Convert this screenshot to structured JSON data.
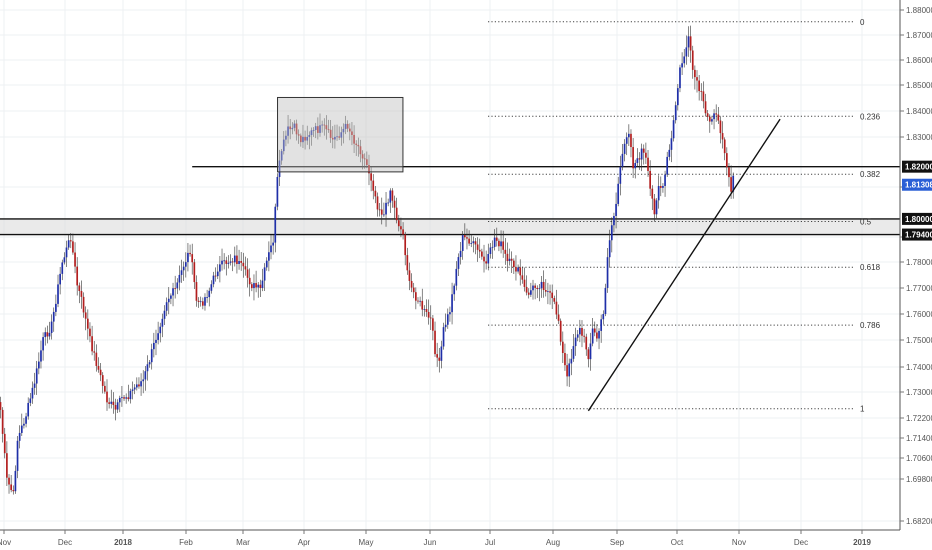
{
  "chart_data": {
    "type": "candlestick",
    "ylim": [
      1.682,
      1.886
    ],
    "y_ticks": [
      "1.88000",
      "1.87000",
      "1.86000",
      "1.85000",
      "1.84000",
      "1.83000",
      "1.81000",
      "1.79000",
      "1.78000",
      "1.77000",
      "1.76000",
      "1.75000",
      "1.74000",
      "1.73000",
      "1.72200",
      "1.71400",
      "1.70600",
      "1.69800",
      "1.68200"
    ],
    "x_ticks": [
      "Nov",
      "Dec",
      "2018",
      "Feb",
      "Mar",
      "Apr",
      "May",
      "Jun",
      "Jul",
      "Aug",
      "Sep",
      "Oct",
      "Nov",
      "Dec",
      "2019"
    ],
    "price_tags": [
      {
        "label": "1.82000",
        "value": 1.82,
        "style": "dark"
      },
      {
        "label": "1.81308",
        "value": 1.81308,
        "style": "blue"
      },
      {
        "label": "1.80000",
        "value": 1.8,
        "style": "dark"
      },
      {
        "label": "1.79400",
        "value": 1.794,
        "style": "dark"
      }
    ],
    "fib_levels": [
      {
        "label": "0",
        "value": 1.8755
      },
      {
        "label": "0.236",
        "value": 1.8393
      },
      {
        "label": "0.382",
        "value": 1.8171
      },
      {
        "label": "0.5",
        "value": 1.799
      },
      {
        "label": "0.618",
        "value": 1.7815
      },
      {
        "label": "0.786",
        "value": 1.7593
      },
      {
        "label": "1",
        "value": 1.7273
      }
    ],
    "horizontal_lines": [
      {
        "value": 1.82,
        "start_bar": 90
      },
      {
        "value": 1.8
      },
      {
        "value": 1.794
      }
    ],
    "support_zone": [
      1.794,
      1.8
    ],
    "range_box": {
      "bar_start": 131,
      "bar_end": 188,
      "top": 1.8465,
      "bottom": 1.818
    },
    "trendline": {
      "start_bar": 276,
      "start_value": 1.7265,
      "end_bar": 366,
      "end_value": 1.8382
    },
    "colors": {
      "up": "#1f2fa8",
      "down": "#b21e1e",
      "wick": "#333333"
    }
  }
}
